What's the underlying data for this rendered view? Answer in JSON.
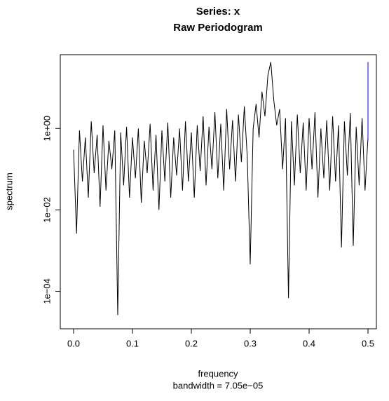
{
  "chart_data": {
    "type": "line",
    "title": "Series: x",
    "subtitle": "Raw Periodogram",
    "x_label": "frequency",
    "x_sublabel": "bandwidth = 7.05e−05",
    "y_label": "spectrum",
    "log_y": true,
    "color": "#000000",
    "xlim": [
      -0.0226,
      0.5143
    ],
    "ylim": [
      1.2e-05,
      65
    ],
    "xticks": [
      {
        "value": 0,
        "label": "0.0"
      },
      0.1,
      0.2,
      0.3,
      0.4,
      0.5
    ],
    "yticks": [
      {
        "value": 0.0001,
        "label": "1e−04"
      },
      {
        "value": 0.01,
        "label": "1e−02"
      },
      {
        "value": 1,
        "label": "1e+00"
      }
    ],
    "x": [
      0,
      0.005,
      0.01,
      0.015,
      0.02,
      0.025,
      0.03,
      0.035,
      0.04,
      0.045,
      0.05,
      0.055,
      0.06,
      0.065,
      0.07,
      0.075,
      0.08,
      0.085,
      0.09,
      0.095,
      0.1,
      0.105,
      0.11,
      0.115,
      0.12,
      0.125,
      0.13,
      0.135,
      0.14,
      0.145,
      0.15,
      0.155,
      0.16,
      0.165,
      0.17,
      0.175,
      0.18,
      0.185,
      0.19,
      0.195,
      0.2,
      0.205,
      0.21,
      0.215,
      0.22,
      0.225,
      0.23,
      0.235,
      0.24,
      0.245,
      0.25,
      0.255,
      0.26,
      0.265,
      0.27,
      0.275,
      0.28,
      0.285,
      0.29,
      0.295,
      0.3,
      0.305,
      0.31,
      0.315,
      0.32,
      0.325,
      0.33,
      0.335,
      0.34,
      0.345,
      0.35,
      0.355,
      0.36,
      0.365,
      0.37,
      0.375,
      0.38,
      0.385,
      0.39,
      0.395,
      0.4,
      0.405,
      0.41,
      0.415,
      0.42,
      0.425,
      0.43,
      0.435,
      0.44,
      0.445,
      0.45,
      0.455,
      0.46,
      0.465,
      0.47,
      0.475,
      0.48,
      0.485,
      0.49,
      0.495,
      0.5
    ],
    "values": [
      0.3,
      0.0026,
      0.9,
      0.05,
      0.6,
      0.02,
      1.5,
      0.08,
      0.7,
      0.012,
      1.2,
      0.03,
      0.5,
      0.1,
      0.9,
      2.6e-05,
      0.8,
      0.04,
      1.1,
      0.02,
      0.6,
      0.06,
      1.0,
      0.015,
      0.5,
      0.08,
      1.3,
      0.03,
      0.7,
      0.01,
      0.9,
      0.05,
      1.4,
      0.02,
      0.6,
      0.07,
      1.0,
      0.03,
      1.5,
      0.05,
      0.8,
      0.02,
      1.2,
      0.09,
      2.0,
      0.04,
      1.1,
      0.1,
      2.5,
      0.06,
      1.3,
      0.03,
      3.0,
      0.1,
      1.6,
      0.05,
      2.2,
      0.15,
      3.5,
      0.2,
      0.00046,
      1.0,
      4.0,
      0.6,
      8.0,
      2.0,
      20,
      43,
      5,
      1.2,
      3.0,
      0.1,
      1.8,
      6.8e-05,
      1.5,
      0.04,
      2.2,
      0.08,
      1.4,
      0.03,
      1.8,
      0.1,
      2.5,
      0.02,
      1.0,
      0.06,
      1.6,
      0.03,
      2.0,
      0.05,
      1.2,
      0.0012,
      1.5,
      0.07,
      2.4,
      0.0013,
      1.1,
      0.04,
      1.8,
      0.03,
      0.6
    ],
    "ci": {
      "x": 0.5,
      "values": [
        0.5,
        43
      ],
      "color": "#0000ff"
    }
  }
}
